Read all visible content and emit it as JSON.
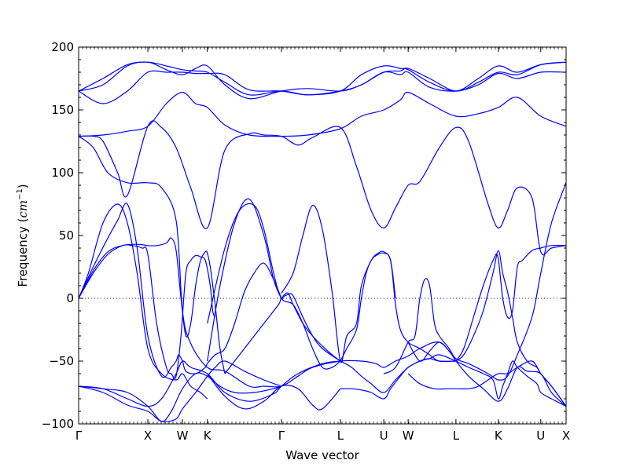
{
  "chart_data": {
    "type": "line",
    "xlabel": "Wave vector",
    "ylabel": "Frequency (",
    "ylabel_unit": "cm",
    "ylabel_exp": "−1",
    "ylabel_close": ")",
    "ylim": [
      -100,
      200
    ],
    "yticks": [
      -100,
      -50,
      0,
      50,
      100,
      150,
      200
    ],
    "xlim": [
      0,
      1
    ],
    "kpoints": [
      {
        "label": "Γ",
        "x": 0.0
      },
      {
        "label": "X",
        "x": 0.142
      },
      {
        "label": "W",
        "x": 0.213
      },
      {
        "label": "K",
        "x": 0.264
      },
      {
        "label": "Γ",
        "x": 0.416
      },
      {
        "label": "L",
        "x": 0.537
      },
      {
        "label": "U",
        "x": 0.626
      },
      {
        "label": "W",
        "x": 0.676
      },
      {
        "label": "L",
        "x": 0.774
      },
      {
        "label": "K",
        "x": 0.861
      },
      {
        "label": "U",
        "x": 0.948
      },
      {
        "label": "X",
        "x": 1.0
      }
    ],
    "zero_line": true,
    "series": [
      {
        "x": [
          0.0,
          0.05,
          0.1,
          0.142,
          0.18,
          0.213,
          0.24,
          0.264,
          0.3,
          0.35,
          0.416,
          0.47,
          0.537,
          0.58,
          0.626,
          0.66,
          0.676,
          0.72,
          0.774,
          0.82,
          0.861,
          0.9,
          0.948,
          1.0
        ],
        "y": [
          165,
          175,
          186,
          188,
          185,
          182,
          181,
          180,
          172,
          162,
          165,
          162,
          165,
          178,
          185,
          183,
          182,
          172,
          165,
          175,
          185,
          180,
          186,
          188
        ]
      },
      {
        "x": [
          0.0,
          0.05,
          0.1,
          0.142,
          0.18,
          0.213,
          0.24,
          0.264,
          0.3,
          0.35,
          0.416,
          0.47,
          0.537,
          0.58,
          0.626,
          0.66,
          0.676,
          0.72,
          0.774,
          0.82,
          0.861,
          0.9,
          0.948,
          1.0
        ],
        "y": [
          165,
          170,
          185,
          188,
          182,
          178,
          183,
          185,
          170,
          159,
          165,
          167,
          165,
          170,
          180,
          181,
          183,
          175,
          165,
          172,
          180,
          178,
          186,
          188
        ]
      },
      {
        "x": [
          0.0,
          0.05,
          0.1,
          0.142,
          0.18,
          0.213,
          0.24,
          0.264,
          0.3,
          0.35,
          0.416,
          0.47,
          0.537,
          0.58,
          0.626,
          0.66,
          0.676,
          0.72,
          0.774,
          0.82,
          0.861,
          0.9,
          0.948,
          1.0
        ],
        "y": [
          165,
          155,
          165,
          180,
          180,
          180,
          179,
          179,
          178,
          166,
          165,
          162,
          165,
          170,
          180,
          178,
          180,
          168,
          165,
          170,
          179,
          175,
          180,
          180
        ]
      },
      {
        "x": [
          0.0,
          0.05,
          0.1,
          0.142,
          0.18,
          0.213,
          0.24,
          0.264,
          0.3,
          0.35,
          0.416,
          0.47,
          0.537,
          0.58,
          0.626,
          0.66,
          0.676,
          0.72,
          0.774,
          0.82,
          0.861,
          0.9,
          0.948,
          1.0
        ],
        "y": [
          129,
          130,
          133,
          137,
          155,
          164,
          155,
          152,
          138,
          130,
          129,
          130,
          135,
          145,
          150,
          158,
          164,
          155,
          145,
          147,
          152,
          160,
          145,
          137
        ]
      },
      {
        "x": [
          0.0,
          0.03,
          0.05,
          0.08,
          0.1,
          0.142,
          0.17,
          0.2,
          0.23,
          0.264,
          0.3,
          0.35,
          0.38,
          0.416,
          0.45,
          0.48,
          0.537,
          0.57,
          0.6,
          0.626,
          0.65,
          0.676,
          0.7,
          0.74,
          0.774,
          0.8,
          0.84,
          0.861,
          0.88,
          0.9,
          0.93,
          0.948,
          0.97,
          1.0
        ],
        "y": [
          129,
          129,
          125,
          100,
          82,
          137,
          136,
          120,
          88,
          56,
          118,
          131,
          130,
          129,
          122,
          128,
          136,
          105,
          70,
          56,
          72,
          90,
          93,
          120,
          136,
          125,
          75,
          56,
          70,
          88,
          80,
          37,
          40,
          42
        ]
      },
      {
        "x": [
          0.0,
          0.03,
          0.06,
          0.1,
          0.142,
          0.17,
          0.2,
          0.213,
          0.23,
          0.264,
          0.3,
          0.35,
          0.38,
          0.416,
          0.45,
          0.48,
          0.537,
          0.58,
          0.61,
          0.626,
          0.65,
          0.676,
          0.7,
          0.74,
          0.774,
          0.8,
          0.84,
          0.861,
          0.88,
          0.9,
          0.93,
          0.948,
          0.97,
          1.0
        ],
        "y": [
          129,
          120,
          100,
          92,
          92,
          88,
          62,
          -10,
          -36,
          -55,
          -58,
          -70,
          -70,
          -70,
          -62,
          -55,
          -50,
          -50,
          -52,
          -55,
          -50,
          -46,
          -40,
          -35,
          -48,
          -52,
          -60,
          -65,
          -62,
          -45,
          -15,
          20,
          60,
          92
        ]
      },
      {
        "x": [
          0.0,
          0.03,
          0.06,
          0.08,
          0.1,
          0.12,
          0.142,
          0.17,
          0.19,
          0.2,
          0.205,
          0.213,
          0.22,
          0.24,
          0.26,
          0.264,
          0.28,
          0.3,
          0.32,
          0.34,
          0.36,
          0.38,
          0.4,
          0.416
        ],
        "y": [
          0,
          25,
          48,
          62,
          75,
          40,
          -30,
          -62,
          -55,
          -50,
          -45,
          -50,
          -58,
          -60,
          -55,
          -52,
          -45,
          -40,
          -20,
          5,
          20,
          28,
          15,
          0
        ]
      },
      {
        "x": [
          0.0,
          0.03,
          0.06,
          0.09,
          0.12,
          0.142,
          0.16,
          0.18,
          0.19,
          0.2,
          0.21,
          0.22,
          0.23,
          0.24,
          0.25,
          0.26,
          0.264,
          0.27,
          0.28,
          0.29,
          0.3
        ],
        "y": [
          0,
          22,
          37,
          42,
          43,
          42,
          42,
          44,
          48,
          38,
          0,
          -30,
          -20,
          10,
          30,
          37,
          36,
          25,
          -5,
          -40,
          -60
        ]
      },
      {
        "x": [
          0.0,
          0.03,
          0.06,
          0.09,
          0.11,
          0.13,
          0.142,
          0.16,
          0.18,
          0.19,
          0.2,
          0.21,
          0.22,
          0.23,
          0.24,
          0.25,
          0.26,
          0.27,
          0.275,
          0.28
        ],
        "y": [
          0,
          20,
          35,
          42,
          42,
          40,
          35,
          -20,
          -55,
          -60,
          -62,
          -30,
          20,
          30,
          34,
          33,
          30,
          10,
          -10,
          -15
        ]
      },
      {
        "x": [
          0.0,
          0.05,
          0.1,
          0.142,
          0.17,
          0.2,
          0.213,
          0.23,
          0.264,
          0.3,
          0.35,
          0.4,
          0.416,
          0.45,
          0.5,
          0.537
        ],
        "y": [
          -70,
          -72,
          -80,
          -86,
          -80,
          -60,
          -50,
          -55,
          -60,
          -75,
          -82,
          -76,
          -70,
          -60,
          -52,
          -50
        ]
      },
      {
        "x": [
          0.0,
          0.05,
          0.1,
          0.142,
          0.17,
          0.19,
          0.213,
          0.24,
          0.264,
          0.29,
          0.32,
          0.36,
          0.4,
          0.416
        ],
        "y": [
          -70,
          -72,
          -75,
          -86,
          -98,
          -90,
          -72,
          -60,
          -62,
          -70,
          -75,
          -75,
          -72,
          -70
        ]
      },
      {
        "x": [
          0.0,
          0.05,
          0.1,
          0.142,
          0.17,
          0.2,
          0.213,
          0.24,
          0.264,
          0.28,
          0.3,
          0.34,
          0.38,
          0.416
        ],
        "y": [
          -70,
          -75,
          -85,
          -90,
          -98,
          -96,
          -88,
          -75,
          -62,
          -55,
          -50,
          -58,
          -65,
          -70
        ]
      },
      {
        "x": [
          0.264,
          0.3,
          0.34,
          0.38,
          0.416,
          0.45,
          0.48,
          0.5,
          0.537
        ],
        "y": [
          -60,
          -78,
          -88,
          -82,
          -70,
          -72,
          -85,
          -88,
          -72
        ]
      },
      {
        "x": [
          0.0,
          0.02,
          0.05,
          0.08,
          0.1,
          0.12,
          0.142,
          0.17,
          0.2,
          0.213,
          0.23,
          0.25,
          0.264
        ],
        "y": [
          0,
          20,
          60,
          75,
          60,
          20,
          -40,
          -60,
          -65,
          -60,
          -70,
          -75,
          -80
        ]
      },
      {
        "x": [
          0.264,
          0.29,
          0.32,
          0.35,
          0.38,
          0.4,
          0.416,
          0.42,
          0.43,
          0.44,
          0.46,
          0.48,
          0.5,
          0.52,
          0.537
        ],
        "y": [
          -50,
          10,
          60,
          79,
          50,
          15,
          0,
          2,
          4,
          -5,
          -20,
          -30,
          -38,
          -45,
          -50
        ]
      },
      {
        "x": [
          0.3,
          0.34,
          0.38,
          0.41,
          0.416,
          0.43,
          0.44,
          0.46,
          0.48,
          0.5,
          0.537
        ],
        "y": [
          -60,
          -40,
          -20,
          -5,
          0,
          3,
          2,
          -15,
          -30,
          -40,
          -50
        ]
      },
      {
        "x": [
          0.264,
          0.3,
          0.33,
          0.36,
          0.38,
          0.4,
          0.416,
          0.44,
          0.46,
          0.48,
          0.5,
          0.52,
          0.537
        ],
        "y": [
          -20,
          40,
          70,
          74,
          55,
          20,
          0,
          -5,
          -20,
          -40,
          -55,
          -55,
          -50
        ]
      },
      {
        "x": [
          0.416,
          0.44,
          0.46,
          0.48,
          0.5,
          0.52,
          0.537,
          0.55,
          0.57,
          0.58,
          0.6,
          0.615,
          0.626,
          0.64,
          0.65
        ],
        "y": [
          4,
          20,
          50,
          74,
          55,
          5,
          -50,
          -30,
          -20,
          10,
          30,
          36,
          37,
          30,
          0
        ]
      },
      {
        "x": [
          0.537,
          0.55,
          0.57,
          0.58,
          0.59,
          0.6,
          0.61,
          0.626,
          0.64,
          0.65,
          0.66,
          0.676,
          0.7,
          0.72,
          0.74,
          0.774
        ],
        "y": [
          -50,
          -40,
          -25,
          0,
          20,
          30,
          34,
          36,
          30,
          -5,
          -25,
          -35,
          -40,
          -45,
          -50,
          -50
        ]
      },
      {
        "x": [
          0.537,
          0.56,
          0.58,
          0.6,
          0.626,
          0.65,
          0.676,
          0.7,
          0.72,
          0.74,
          0.774
        ],
        "y": [
          -50,
          -55,
          -62,
          -68,
          -75,
          -65,
          -55,
          -50,
          -48,
          -50,
          -50
        ]
      },
      {
        "x": [
          0.537,
          0.56,
          0.58,
          0.6,
          0.626,
          0.64,
          0.66,
          0.676,
          0.7,
          0.72,
          0.74,
          0.774
        ],
        "y": [
          -72,
          -72,
          -73,
          -75,
          -80,
          -72,
          -62,
          -55,
          -50,
          -48,
          -45,
          -50
        ]
      },
      {
        "x": [
          0.626,
          0.65,
          0.676,
          0.69,
          0.7,
          0.71,
          0.72,
          0.73,
          0.74,
          0.76,
          0.774
        ],
        "y": [
          -60,
          -55,
          -35,
          -30,
          0,
          15,
          10,
          -20,
          -30,
          -40,
          -50
        ]
      },
      {
        "x": [
          0.676,
          0.7,
          0.72,
          0.74,
          0.76,
          0.774
        ],
        "y": [
          -35,
          -50,
          -42,
          -35,
          -42,
          -50
        ]
      },
      {
        "x": [
          0.676,
          0.7,
          0.73,
          0.76,
          0.774,
          0.8,
          0.82,
          0.84,
          0.861,
          0.88,
          0.9,
          0.93,
          0.948,
          0.97,
          1.0
        ],
        "y": [
          -60,
          -68,
          -72,
          -72,
          -72,
          -72,
          -70,
          -65,
          -60,
          -60,
          -55,
          -50,
          -60,
          -70,
          -86
        ]
      },
      {
        "x": [
          0.774,
          0.79,
          0.81,
          0.83,
          0.85,
          0.861,
          0.87,
          0.88,
          0.89,
          0.9,
          0.92,
          0.94,
          0.948,
          0.97,
          1.0
        ],
        "y": [
          -50,
          -45,
          -30,
          -10,
          20,
          38,
          20,
          5,
          -15,
          -35,
          -50,
          -55,
          -60,
          -70,
          -86
        ]
      },
      {
        "x": [
          0.774,
          0.8,
          0.83,
          0.85,
          0.861,
          0.87,
          0.88,
          0.89,
          0.9,
          0.92,
          0.94,
          0.948,
          0.97,
          1.0
        ],
        "y": [
          -50,
          -55,
          -60,
          -65,
          -80,
          -70,
          -60,
          -50,
          -55,
          -62,
          -68,
          -75,
          -80,
          -86
        ]
      },
      {
        "x": [
          0.774,
          0.79,
          0.81,
          0.83,
          0.85,
          0.86,
          0.87,
          0.88,
          0.89,
          0.9,
          0.91,
          0.93,
          0.948,
          0.97,
          1.0
        ],
        "y": [
          -50,
          -40,
          -15,
          10,
          30,
          33,
          0,
          -15,
          -10,
          25,
          30,
          38,
          40,
          42,
          42
        ]
      },
      {
        "x": [
          0.774,
          0.8,
          0.83,
          0.861,
          0.88,
          0.9,
          0.92,
          0.948,
          0.97,
          1.0
        ],
        "y": [
          -50,
          -62,
          -72,
          -82,
          -72,
          -55,
          -58,
          -60,
          -75,
          -86
        ]
      }
    ]
  }
}
